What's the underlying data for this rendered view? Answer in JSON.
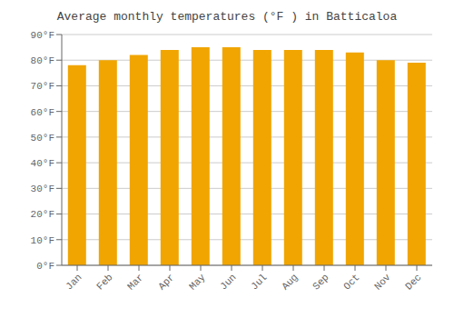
{
  "chart_data": {
    "type": "bar",
    "title": "Average monthly temperatures (°F ) in Batticaloa",
    "categories": [
      "Jan",
      "Feb",
      "Mar",
      "Apr",
      "May",
      "Jun",
      "Jul",
      "Aug",
      "Sep",
      "Oct",
      "Nov",
      "Dec"
    ],
    "values": [
      78,
      80,
      82,
      84,
      85,
      85,
      84,
      84,
      84,
      83,
      80,
      79
    ],
    "color": "#F0A500",
    "ylim": [
      0,
      90
    ],
    "yticks": [
      {
        "value": 0,
        "label": "0°F"
      },
      {
        "value": 10,
        "label": "10°F"
      },
      {
        "value": 20,
        "label": "20°F"
      },
      {
        "value": 30,
        "label": "30°F"
      },
      {
        "value": 40,
        "label": "40°F"
      },
      {
        "value": 50,
        "label": "50°F"
      },
      {
        "value": 60,
        "label": "60°F"
      },
      {
        "value": 70,
        "label": "70°F"
      },
      {
        "value": 80,
        "label": "80°F"
      },
      {
        "value": 90,
        "label": "90°F"
      }
    ],
    "grid": true
  }
}
